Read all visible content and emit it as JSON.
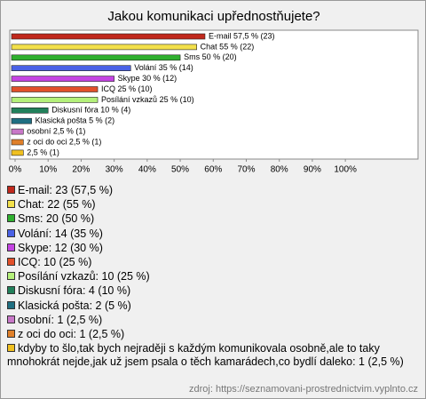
{
  "chart_data": {
    "type": "hbar",
    "title": "Jakou komunikaci upřednostňujete?",
    "values": [
      57.5,
      55,
      50,
      35,
      30,
      25,
      25,
      10,
      5,
      2.5,
      2.5,
      2.5
    ],
    "value_labels": [
      "E-mail 57,5 % (23)",
      "Chat 55 % (22)",
      "Sms 50 % (20)",
      "Volání 35 % (14)",
      "Skype 30 % (12)",
      "ICQ 25 % (10)",
      "Posílání vzkazů 25 % (10)",
      "Diskusní fóra 10 % (4)",
      "Klasická pošta 5 % (2)",
      "osobní 2,5 % (1)",
      "z oci do oci 2,5 % (1)",
      "2,5 % (1)"
    ],
    "legend": [
      "E-mail: 23 (57,5 %)",
      "Chat: 22 (55 %)",
      "Sms: 20 (50 %)",
      "Volání: 14 (35 %)",
      "Skype: 12 (30 %)",
      "ICQ: 10 (25 %)",
      "Posílání vzkazů: 10 (25 %)",
      "Diskusní fóra: 4 (10 %)",
      "Klasická pošta: 2 (5 %)",
      "osobní: 1 (2,5 %)",
      "z oci do oci: 1 (2,5 %)",
      "kdyby to šlo,tak bych nejraději s každým komunikovala osobně,ale to taky mnohokrát nejde,jak už jsem psala o těch kamarádech,co bydlí daleko: 1 (2,5 %)"
    ],
    "colors": [
      "#c0281c",
      "#f2e04a",
      "#2fb02f",
      "#4a62e6",
      "#c444e2",
      "#e2502a",
      "#b4f07a",
      "#21805a",
      "#1f6f82",
      "#c878c8",
      "#e0802a",
      "#f0c020"
    ],
    "xlim": [
      0,
      122
    ],
    "xticks": [
      {
        "value": 0,
        "label": "0%"
      },
      {
        "value": 10,
        "label": "10%"
      },
      {
        "value": 20,
        "label": "20%"
      },
      {
        "value": 30,
        "label": "30%"
      },
      {
        "value": 40,
        "label": "40%"
      },
      {
        "value": 50,
        "label": "50%"
      },
      {
        "value": 60,
        "label": "60%"
      },
      {
        "value": 70,
        "label": "70%"
      },
      {
        "value": 80,
        "label": "80%"
      },
      {
        "value": 90,
        "label": "90%"
      },
      {
        "value": 100,
        "label": "100%"
      }
    ],
    "grid": false,
    "source": "zdroj: https://seznamovani-prostrednictvim.vyplnto.cz"
  }
}
